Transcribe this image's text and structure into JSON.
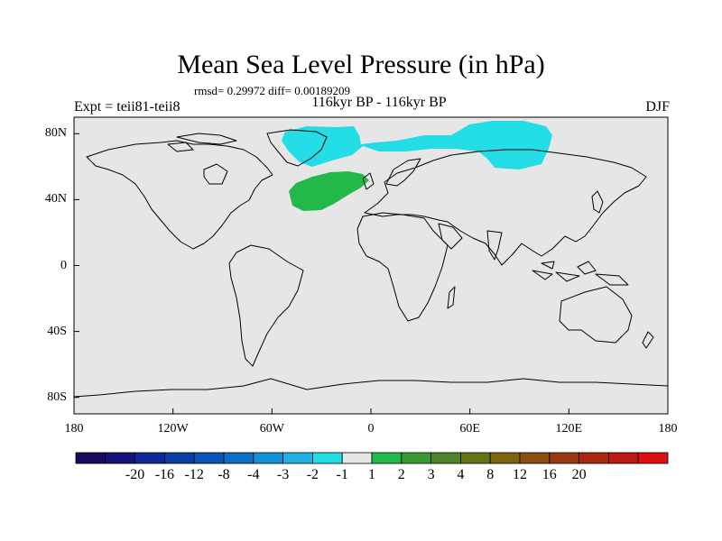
{
  "title": "Mean Sea Level Pressure (in hPa)",
  "stats": "rmsd= 0.29972 diff= 0.00189209",
  "left_label": "Expt = teii81-teii8",
  "subtitle": "116kyr BP - 116kyr BP",
  "season": "DJF",
  "map": {
    "projection": "cylindrical equidistant",
    "lon_range": [
      -180,
      180
    ],
    "lat_range": [
      -90,
      90
    ],
    "background": "#e6e6e6",
    "lat_ticks": [
      {
        "value": 80,
        "label": "80N"
      },
      {
        "value": 40,
        "label": "40N"
      },
      {
        "value": 0,
        "label": "0"
      },
      {
        "value": -40,
        "label": "40S"
      },
      {
        "value": -80,
        "label": "80S"
      }
    ],
    "lon_ticks": [
      {
        "value": -180,
        "label": "180"
      },
      {
        "value": -120,
        "label": "120W"
      },
      {
        "value": -60,
        "label": "60W"
      },
      {
        "value": 0,
        "label": "0"
      },
      {
        "value": 60,
        "label": "60E"
      },
      {
        "value": 120,
        "label": "120E"
      },
      {
        "value": 180,
        "label": "180"
      }
    ],
    "anomaly_regions": [
      {
        "name": "arctic-negative-anomaly",
        "color": "#22dde6",
        "interval": "-2 to -1"
      },
      {
        "name": "north-atlantic-positive-anomaly",
        "color": "#22b84a",
        "interval": "1 to 2"
      }
    ]
  },
  "colorbar": {
    "colors": [
      "#1a0a5e",
      "#14147a",
      "#10289a",
      "#0c3ea8",
      "#0a54b8",
      "#0c6ec6",
      "#1390d6",
      "#22b0e2",
      "#22dde6",
      "#e6e6e6",
      "#22b84a",
      "#3a9a32",
      "#4e8428",
      "#667216",
      "#7e6410",
      "#8c4e10",
      "#9a3810",
      "#a82810",
      "#bc1a10",
      "#dc1010"
    ],
    "labels": [
      "-20",
      "-16",
      "-12",
      "-8",
      "-4",
      "-3",
      "-2",
      "-1",
      "1",
      "2",
      "3",
      "4",
      "8",
      "12",
      "16",
      "20"
    ]
  }
}
